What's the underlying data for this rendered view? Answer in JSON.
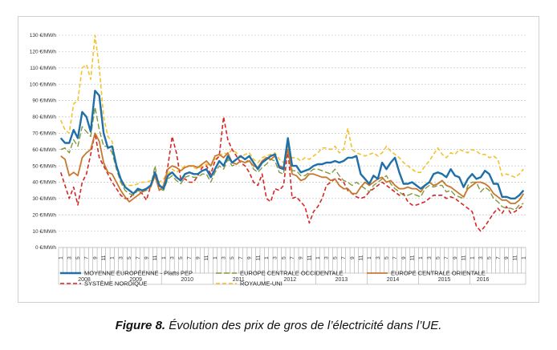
{
  "caption": {
    "label": "Figure 8.",
    "text": " Évolution des prix de gros de l’électricité dans l’UE."
  },
  "chart_data": {
    "type": "line",
    "title": "",
    "xlabel": "",
    "ylabel": "",
    "ylim": [
      0,
      130
    ],
    "yticks": [
      "0 €/MWh",
      "10 €/MWh",
      "20 €/MWh",
      "30 €/MWh",
      "40 €/MWh",
      "50 €/MWh",
      "60 €/MWh",
      "70 €/MWh",
      "80 €/MWh",
      "90 €/MWh",
      "100 €/MWh",
      "110 €/MWh",
      "120 €/MWh",
      "130 €/MWh"
    ],
    "grid": true,
    "legend_position": "bottom",
    "month_tick_labels": [
      "1",
      "3",
      "5",
      "7",
      "9",
      "11"
    ],
    "years": [
      "2008",
      "2009",
      "2010",
      "2011",
      "2012",
      "2013",
      "2014",
      "2015",
      "2016"
    ],
    "months_in_last_year": 6,
    "series": [
      {
        "name": "MOYENNE EUROPÉENNE - Platts PEP",
        "color": "#1f6fa8",
        "dash": "solid",
        "width": 2.4,
        "values": [
          67,
          64,
          64,
          72,
          67,
          83,
          80,
          71,
          96,
          93,
          70,
          61,
          62,
          50,
          42,
          37,
          35,
          33,
          36,
          35,
          36,
          38,
          46,
          38,
          36,
          44,
          46,
          43,
          41,
          45,
          46,
          45,
          45,
          47,
          48,
          43,
          48,
          53,
          50,
          56,
          52,
          54,
          56,
          54,
          56,
          52,
          48,
          52,
          54,
          56,
          57,
          49,
          48,
          67,
          50,
          50,
          46,
          47,
          48,
          50,
          51,
          51,
          52,
          52,
          53,
          52,
          53,
          55,
          55,
          56,
          45,
          42,
          39,
          44,
          42,
          52,
          48,
          52,
          55,
          46,
          39,
          39,
          40,
          38,
          36,
          38,
          40,
          45,
          46,
          45,
          43,
          48,
          44,
          43,
          37,
          42,
          45,
          42,
          43,
          47,
          45,
          39,
          39,
          31,
          31,
          30,
          30,
          32,
          35
        ]
      },
      {
        "name": "EUROPE CENTRALE OCCIDENTALE",
        "color": "#7f9a3c",
        "dash": "7,3",
        "width": 1.4,
        "values": [
          60,
          61,
          58,
          66,
          62,
          74,
          71,
          68,
          86,
          72,
          62,
          62,
          58,
          48,
          40,
          35,
          33,
          32,
          35,
          34,
          35,
          37,
          50,
          36,
          35,
          42,
          44,
          41,
          39,
          43,
          44,
          43,
          43,
          45,
          45,
          40,
          46,
          50,
          48,
          54,
          50,
          51,
          53,
          52,
          54,
          48,
          46,
          49,
          51,
          54,
          53,
          46,
          45,
          64,
          47,
          47,
          44,
          44,
          46,
          48,
          48,
          47,
          46,
          45,
          48,
          44,
          41,
          40,
          38,
          40,
          38,
          36,
          34,
          38,
          40,
          42,
          44,
          39,
          36,
          34,
          32,
          32,
          33,
          32,
          31,
          36,
          38,
          37,
          38,
          38,
          34,
          35,
          32,
          31,
          30,
          38,
          40,
          40,
          34,
          37,
          35,
          30,
          28,
          25,
          24,
          24,
          23,
          26,
          27
        ]
      },
      {
        "name": "EUROPE CENTRALE ORIENTALE",
        "color": "#c8782e",
        "dash": "solid",
        "width": 1.8,
        "values": [
          56,
          54,
          44,
          46,
          44,
          55,
          58,
          60,
          70,
          65,
          52,
          46,
          45,
          40,
          35,
          31,
          28,
          30,
          32,
          34,
          36,
          37,
          44,
          35,
          38,
          48,
          50,
          49,
          47,
          49,
          50,
          50,
          49,
          51,
          53,
          50,
          56,
          57,
          55,
          58,
          52,
          51,
          53,
          52,
          53,
          50,
          49,
          53,
          55,
          54,
          56,
          50,
          49,
          60,
          45,
          44,
          41,
          42,
          45,
          45,
          44,
          43,
          43,
          41,
          42,
          38,
          36,
          36,
          33,
          33,
          37,
          40,
          38,
          40,
          42,
          43,
          40,
          41,
          38,
          36,
          36,
          37,
          36,
          36,
          34,
          38,
          40,
          38,
          39,
          41,
          38,
          37,
          35,
          33,
          31,
          36,
          38,
          40,
          40,
          39,
          37,
          33,
          31,
          29,
          29,
          27,
          27,
          29,
          33
        ]
      },
      {
        "name": "SYSTÈME NORDIQUE",
        "color": "#d62728",
        "dash": "5,3",
        "width": 1.6,
        "values": [
          46,
          38,
          30,
          37,
          26,
          40,
          45,
          57,
          70,
          55,
          50,
          45,
          40,
          36,
          32,
          30,
          30,
          33,
          35,
          33,
          29,
          38,
          44,
          38,
          38,
          50,
          68,
          58,
          42,
          42,
          40,
          40,
          44,
          49,
          50,
          45,
          53,
          56,
          80,
          66,
          60,
          56,
          52,
          50,
          46,
          40,
          38,
          45,
          30,
          28,
          36,
          35,
          38,
          60,
          30,
          31,
          28,
          25,
          15,
          22,
          25,
          30,
          38,
          40,
          42,
          42,
          40,
          35,
          33,
          31,
          30,
          31,
          34,
          36,
          38,
          40,
          38,
          36,
          34,
          32,
          33,
          28,
          26,
          26,
          27,
          28,
          30,
          32,
          32,
          32,
          30,
          31,
          30,
          28,
          26,
          24,
          22,
          13,
          10,
          13,
          17,
          21,
          24,
          21,
          25,
          21,
          22,
          24,
          26
        ]
      },
      {
        "name": "ROYAUME-UNI",
        "color": "#f2c230",
        "dash": "5,3",
        "width": 1.6,
        "values": [
          78,
          72,
          70,
          88,
          90,
          110,
          112,
          103,
          130,
          110,
          80,
          68,
          65,
          50,
          42,
          38,
          38,
          38,
          39,
          40,
          40,
          41,
          45,
          40,
          42,
          45,
          48,
          46,
          48,
          50,
          50,
          49,
          48,
          50,
          51,
          50,
          54,
          56,
          58,
          57,
          60,
          58,
          55,
          57,
          58,
          54,
          52,
          55,
          56,
          57,
          58,
          54,
          52,
          56,
          55,
          55,
          53,
          55,
          54,
          56,
          58,
          61,
          61,
          60,
          62,
          58,
          60,
          73,
          60,
          58,
          57,
          56,
          57,
          58,
          56,
          58,
          62,
          59,
          57,
          55,
          52,
          50,
          48,
          46,
          46,
          50,
          53,
          57,
          61,
          57,
          55,
          58,
          57,
          60,
          59,
          58,
          60,
          59,
          57,
          57,
          55,
          56,
          54,
          44,
          45,
          44,
          43,
          45,
          48
        ]
      }
    ]
  }
}
